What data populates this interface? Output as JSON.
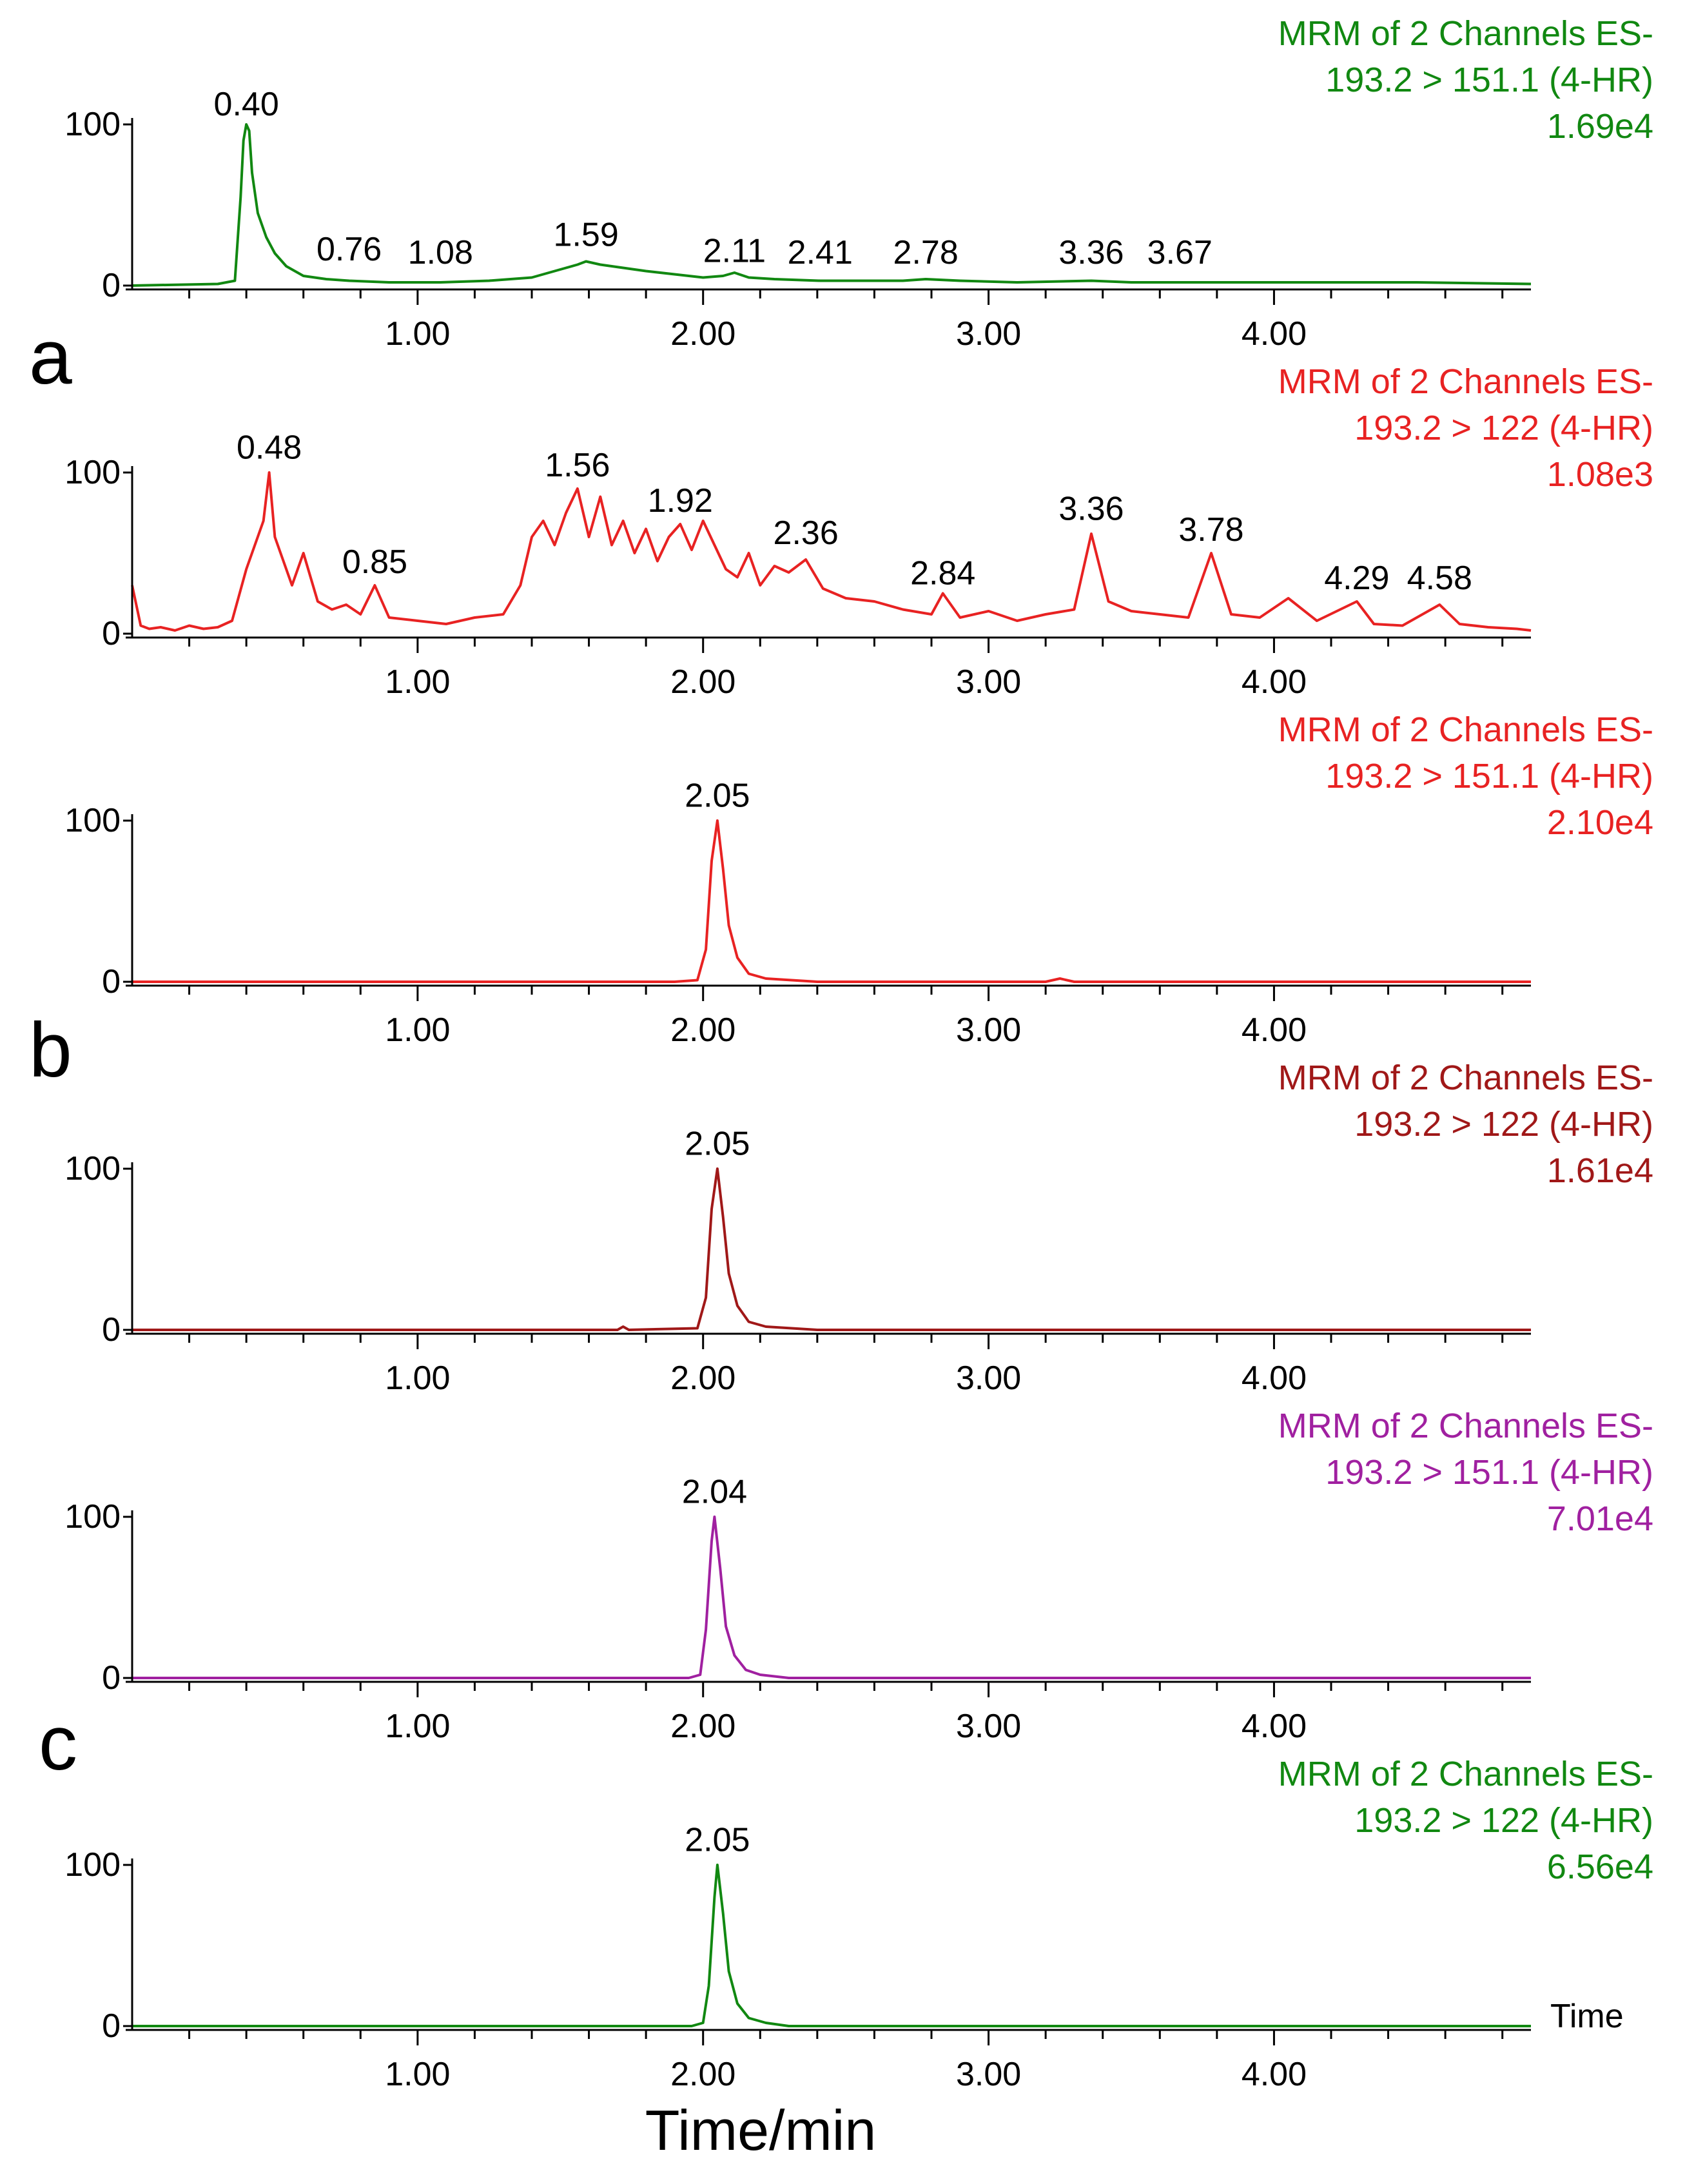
{
  "figure": {
    "xlabel": "Time/min",
    "time_label": "Time"
  },
  "panel_letters": [
    "a",
    "b",
    "c"
  ],
  "chart_data": [
    {
      "type": "line",
      "panel": "a",
      "color": "#118811",
      "header": [
        "MRM of 2 Channels ES-",
        "193.2 > 151.1 (4-HR)",
        "1.69e4"
      ],
      "xlim": [
        0,
        4.9
      ],
      "ylim": [
        0,
        100
      ],
      "yticks": [
        0,
        100
      ],
      "xticks": [
        1.0,
        2.0,
        3.0,
        4.0
      ],
      "xtick_labels": [
        "1.00",
        "2.00",
        "3.00",
        "4.00"
      ],
      "peak_labels": [
        "0.40",
        "0.76",
        "1.08",
        "1.59",
        "2.11",
        "2.41",
        "2.78",
        "3.36",
        "3.67"
      ],
      "series": [
        {
          "name": "193.2 > 151.1 (4-HR)",
          "x": [
            0.0,
            0.3,
            0.36,
            0.38,
            0.39,
            0.4,
            0.41,
            0.42,
            0.44,
            0.47,
            0.5,
            0.54,
            0.6,
            0.68,
            0.76,
            0.9,
            1.08,
            1.25,
            1.4,
            1.5,
            1.56,
            1.59,
            1.64,
            1.72,
            1.8,
            1.9,
            2.0,
            2.07,
            2.11,
            2.16,
            2.25,
            2.41,
            2.55,
            2.7,
            2.78,
            2.9,
            3.1,
            3.36,
            3.5,
            3.67,
            3.9,
            4.2,
            4.5,
            4.9
          ],
          "y": [
            0,
            1,
            3,
            55,
            90,
            100,
            96,
            70,
            45,
            30,
            20,
            12,
            6,
            4,
            3,
            2,
            2,
            3,
            5,
            10,
            13,
            15,
            13,
            11,
            9,
            7,
            5,
            6,
            8,
            5,
            4,
            3,
            3,
            3,
            4,
            3,
            2,
            3,
            2,
            2,
            2,
            2,
            2,
            1
          ]
        }
      ]
    },
    {
      "type": "line",
      "panel": "a",
      "color": "#e82222",
      "header": [
        "MRM of 2 Channels ES-",
        "193.2 > 122 (4-HR)",
        "1.08e3"
      ],
      "xlim": [
        0,
        4.9
      ],
      "ylim": [
        0,
        100
      ],
      "yticks": [
        0,
        100
      ],
      "xticks": [
        1.0,
        2.0,
        3.0,
        4.0
      ],
      "xtick_labels": [
        "1.00",
        "2.00",
        "3.00",
        "4.00"
      ],
      "peak_labels": [
        "0.48",
        "0.85",
        "1.56",
        "1.92",
        "2.36",
        "2.84",
        "3.36",
        "3.78",
        "4.29",
        "4.58"
      ],
      "series": [
        {
          "name": "193.2 > 122 (4-HR)",
          "x": [
            0.0,
            0.03,
            0.06,
            0.1,
            0.15,
            0.2,
            0.25,
            0.3,
            0.35,
            0.4,
            0.43,
            0.46,
            0.48,
            0.5,
            0.53,
            0.56,
            0.6,
            0.65,
            0.7,
            0.75,
            0.8,
            0.85,
            0.9,
            1.0,
            1.1,
            1.2,
            1.3,
            1.36,
            1.4,
            1.44,
            1.48,
            1.52,
            1.56,
            1.6,
            1.64,
            1.68,
            1.72,
            1.76,
            1.8,
            1.84,
            1.88,
            1.92,
            1.96,
            2.0,
            2.04,
            2.08,
            2.12,
            2.16,
            2.2,
            2.25,
            2.3,
            2.36,
            2.42,
            2.5,
            2.6,
            2.7,
            2.8,
            2.84,
            2.9,
            3.0,
            3.1,
            3.2,
            3.3,
            3.36,
            3.42,
            3.5,
            3.6,
            3.7,
            3.78,
            3.85,
            3.95,
            4.05,
            4.15,
            4.29,
            4.35,
            4.45,
            4.58,
            4.65,
            4.75,
            4.85,
            4.9
          ],
          "y": [
            30,
            5,
            3,
            4,
            2,
            5,
            3,
            4,
            8,
            40,
            55,
            70,
            100,
            60,
            45,
            30,
            50,
            20,
            15,
            18,
            12,
            30,
            10,
            8,
            6,
            10,
            12,
            30,
            60,
            70,
            55,
            75,
            90,
            60,
            85,
            55,
            70,
            50,
            65,
            45,
            60,
            68,
            52,
            70,
            55,
            40,
            35,
            50,
            30,
            42,
            38,
            46,
            28,
            22,
            20,
            15,
            12,
            25,
            10,
            14,
            8,
            12,
            15,
            62,
            20,
            14,
            12,
            10,
            50,
            12,
            10,
            22,
            8,
            20,
            6,
            5,
            18,
            6,
            4,
            3,
            2
          ]
        }
      ]
    },
    {
      "type": "line",
      "panel": "b",
      "color": "#e82222",
      "header": [
        "MRM of 2 Channels ES-",
        "193.2 > 151.1 (4-HR)",
        "2.10e4"
      ],
      "xlim": [
        0,
        4.9
      ],
      "ylim": [
        0,
        100
      ],
      "yticks": [
        0,
        100
      ],
      "xticks": [
        1.0,
        2.0,
        3.0,
        4.0
      ],
      "xtick_labels": [
        "1.00",
        "2.00",
        "3.00",
        "4.00"
      ],
      "peak_labels": [
        "2.05"
      ],
      "series": [
        {
          "name": "193.2 > 151.1 (4-HR)",
          "x": [
            0.0,
            1.9,
            1.98,
            2.01,
            2.03,
            2.05,
            2.07,
            2.09,
            2.12,
            2.16,
            2.22,
            2.4,
            3.2,
            3.25,
            3.3,
            4.9
          ],
          "y": [
            0,
            0,
            1,
            20,
            75,
            100,
            70,
            35,
            15,
            5,
            2,
            0,
            0,
            2,
            0,
            0
          ]
        }
      ]
    },
    {
      "type": "line",
      "panel": "b",
      "color": "#a01818",
      "header": [
        "MRM of 2 Channels ES-",
        "193.2 > 122 (4-HR)",
        "1.61e4"
      ],
      "xlim": [
        0,
        4.9
      ],
      "ylim": [
        0,
        100
      ],
      "yticks": [
        0,
        100
      ],
      "xticks": [
        1.0,
        2.0,
        3.0,
        4.0
      ],
      "xtick_labels": [
        "1.00",
        "2.00",
        "3.00",
        "4.00"
      ],
      "peak_labels": [
        "2.05"
      ],
      "series": [
        {
          "name": "193.2 > 122 (4-HR)",
          "x": [
            0.0,
            1.7,
            1.72,
            1.74,
            1.98,
            2.01,
            2.03,
            2.05,
            2.07,
            2.09,
            2.12,
            2.16,
            2.22,
            2.4,
            4.9
          ],
          "y": [
            0,
            0,
            2,
            0,
            1,
            20,
            75,
            100,
            70,
            35,
            15,
            5,
            2,
            0,
            0
          ]
        }
      ]
    },
    {
      "type": "line",
      "panel": "c",
      "color": "#a020a0",
      "header": [
        "MRM of 2 Channels ES-",
        "193.2 > 151.1 (4-HR)",
        "7.01e4"
      ],
      "xlim": [
        0,
        4.9
      ],
      "ylim": [
        0,
        100
      ],
      "yticks": [
        0,
        100
      ],
      "xticks": [
        1.0,
        2.0,
        3.0,
        4.0
      ],
      "xtick_labels": [
        "1.00",
        "2.00",
        "3.00",
        "4.00"
      ],
      "peak_labels": [
        "2.04"
      ],
      "series": [
        {
          "name": "193.2 > 151.1 (4-HR)",
          "x": [
            0.0,
            1.95,
            1.99,
            2.01,
            2.03,
            2.04,
            2.06,
            2.08,
            2.11,
            2.15,
            2.2,
            2.3,
            4.9
          ],
          "y": [
            0,
            0,
            2,
            30,
            85,
            100,
            68,
            32,
            14,
            5,
            2,
            0,
            0
          ]
        }
      ]
    },
    {
      "type": "line",
      "panel": "c",
      "color": "#118811",
      "header": [
        "MRM of 2 Channels ES-",
        "193.2 > 122 (4-HR)",
        "6.56e4"
      ],
      "xlim": [
        0,
        4.9
      ],
      "ylim": [
        0,
        100
      ],
      "yticks": [
        0,
        100
      ],
      "xticks": [
        1.0,
        2.0,
        3.0,
        4.0
      ],
      "xtick_labels": [
        "1.00",
        "2.00",
        "3.00",
        "4.00"
      ],
      "peak_labels": [
        "2.05"
      ],
      "series": [
        {
          "name": "193.2 > 122 (4-HR)",
          "x": [
            0.0,
            1.96,
            2.0,
            2.02,
            2.04,
            2.05,
            2.07,
            2.09,
            2.12,
            2.16,
            2.22,
            2.3,
            4.9
          ],
          "y": [
            0,
            0,
            2,
            25,
            80,
            100,
            70,
            34,
            14,
            5,
            2,
            0,
            0
          ]
        }
      ]
    }
  ]
}
